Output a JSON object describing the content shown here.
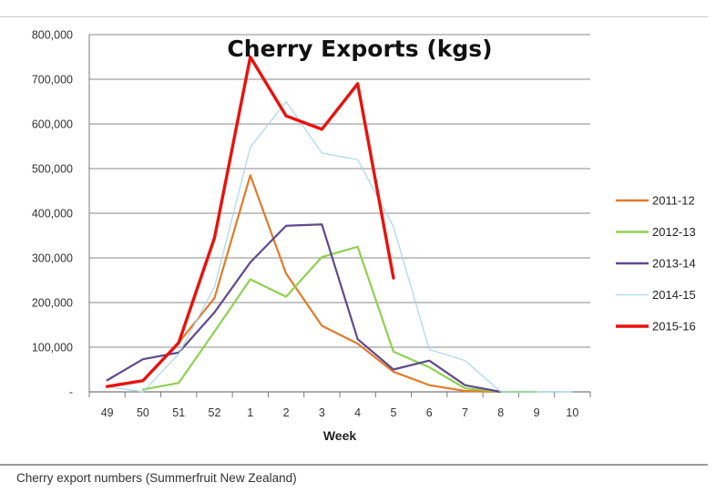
{
  "caption": "Cherry export numbers (Summerfruit New Zealand)",
  "chart_data": {
    "type": "line",
    "title": "Cherry Exports (kgs)",
    "xlabel": "Week",
    "ylabel": "",
    "categories": [
      "49",
      "50",
      "51",
      "52",
      "1",
      "2",
      "3",
      "4",
      "5",
      "6",
      "7",
      "8",
      "9",
      "10"
    ],
    "ylim": [
      0,
      800000
    ],
    "yticks": [
      0,
      100000,
      200000,
      300000,
      400000,
      500000,
      600000,
      700000,
      800000
    ],
    "ytick_labels": [
      "-",
      "100,000",
      "200,000",
      "300,000",
      "400,000",
      "500,000",
      "600,000",
      "700,000",
      "800,000"
    ],
    "grid": true,
    "legend_position": "right",
    "series": [
      {
        "name": "2011-12",
        "color": "#e07b2a",
        "values": [
          null,
          null,
          110000,
          210000,
          485000,
          265000,
          148000,
          108000,
          45000,
          15000,
          2000,
          0,
          null,
          null
        ]
      },
      {
        "name": "2012-13",
        "color": "#8fd14f",
        "values": [
          null,
          5000,
          20000,
          135000,
          252000,
          213000,
          302000,
          325000,
          90000,
          55000,
          8000,
          0,
          0,
          null
        ]
      },
      {
        "name": "2013-14",
        "color": "#5e4a8a",
        "values": [
          26000,
          73000,
          88000,
          178000,
          290000,
          372000,
          375000,
          118000,
          50000,
          70000,
          15000,
          0,
          null,
          null
        ]
      },
      {
        "name": "2014-15",
        "color": "#a8d8ea",
        "values": [
          12000,
          0,
          85000,
          235000,
          548000,
          650000,
          535000,
          520000,
          370000,
          95000,
          70000,
          0,
          0,
          0
        ]
      },
      {
        "name": "2015-16",
        "color": "#e8120c",
        "values": [
          12000,
          25000,
          110000,
          345000,
          750000,
          618000,
          588000,
          690000,
          255000,
          null,
          null,
          null,
          null,
          null
        ]
      }
    ]
  }
}
